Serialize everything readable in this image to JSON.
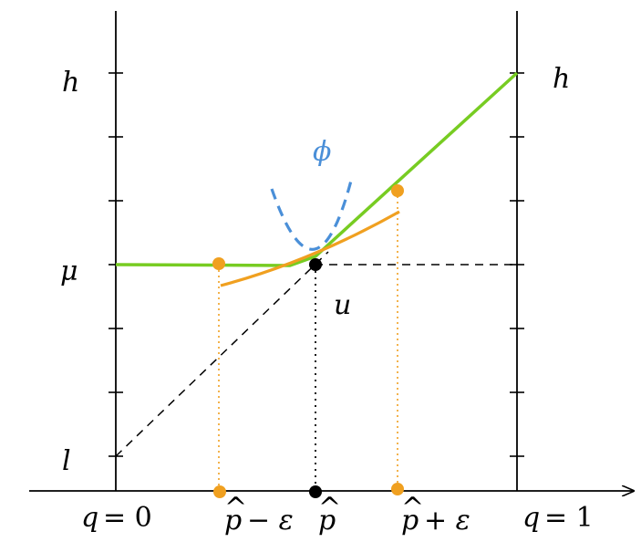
{
  "labels": {
    "left_h": "h",
    "right_h": "h",
    "mu": "μ",
    "l": "l",
    "phi": "ϕ",
    "u": "u",
    "q0_var": "q",
    "q0_eq": "= 0",
    "q1_var": "q",
    "q1_eq": "= 1",
    "p_minus_var": "p",
    "p_minus_rest": "− ε",
    "p_hat_var": "p",
    "p_plus_var": "p",
    "p_plus_rest": "+ ε",
    "hat": "^"
  },
  "colors": {
    "green": "#77cc22",
    "orange": "#f0a020",
    "blue": "#4a8fd8",
    "black": "#000000"
  }
}
